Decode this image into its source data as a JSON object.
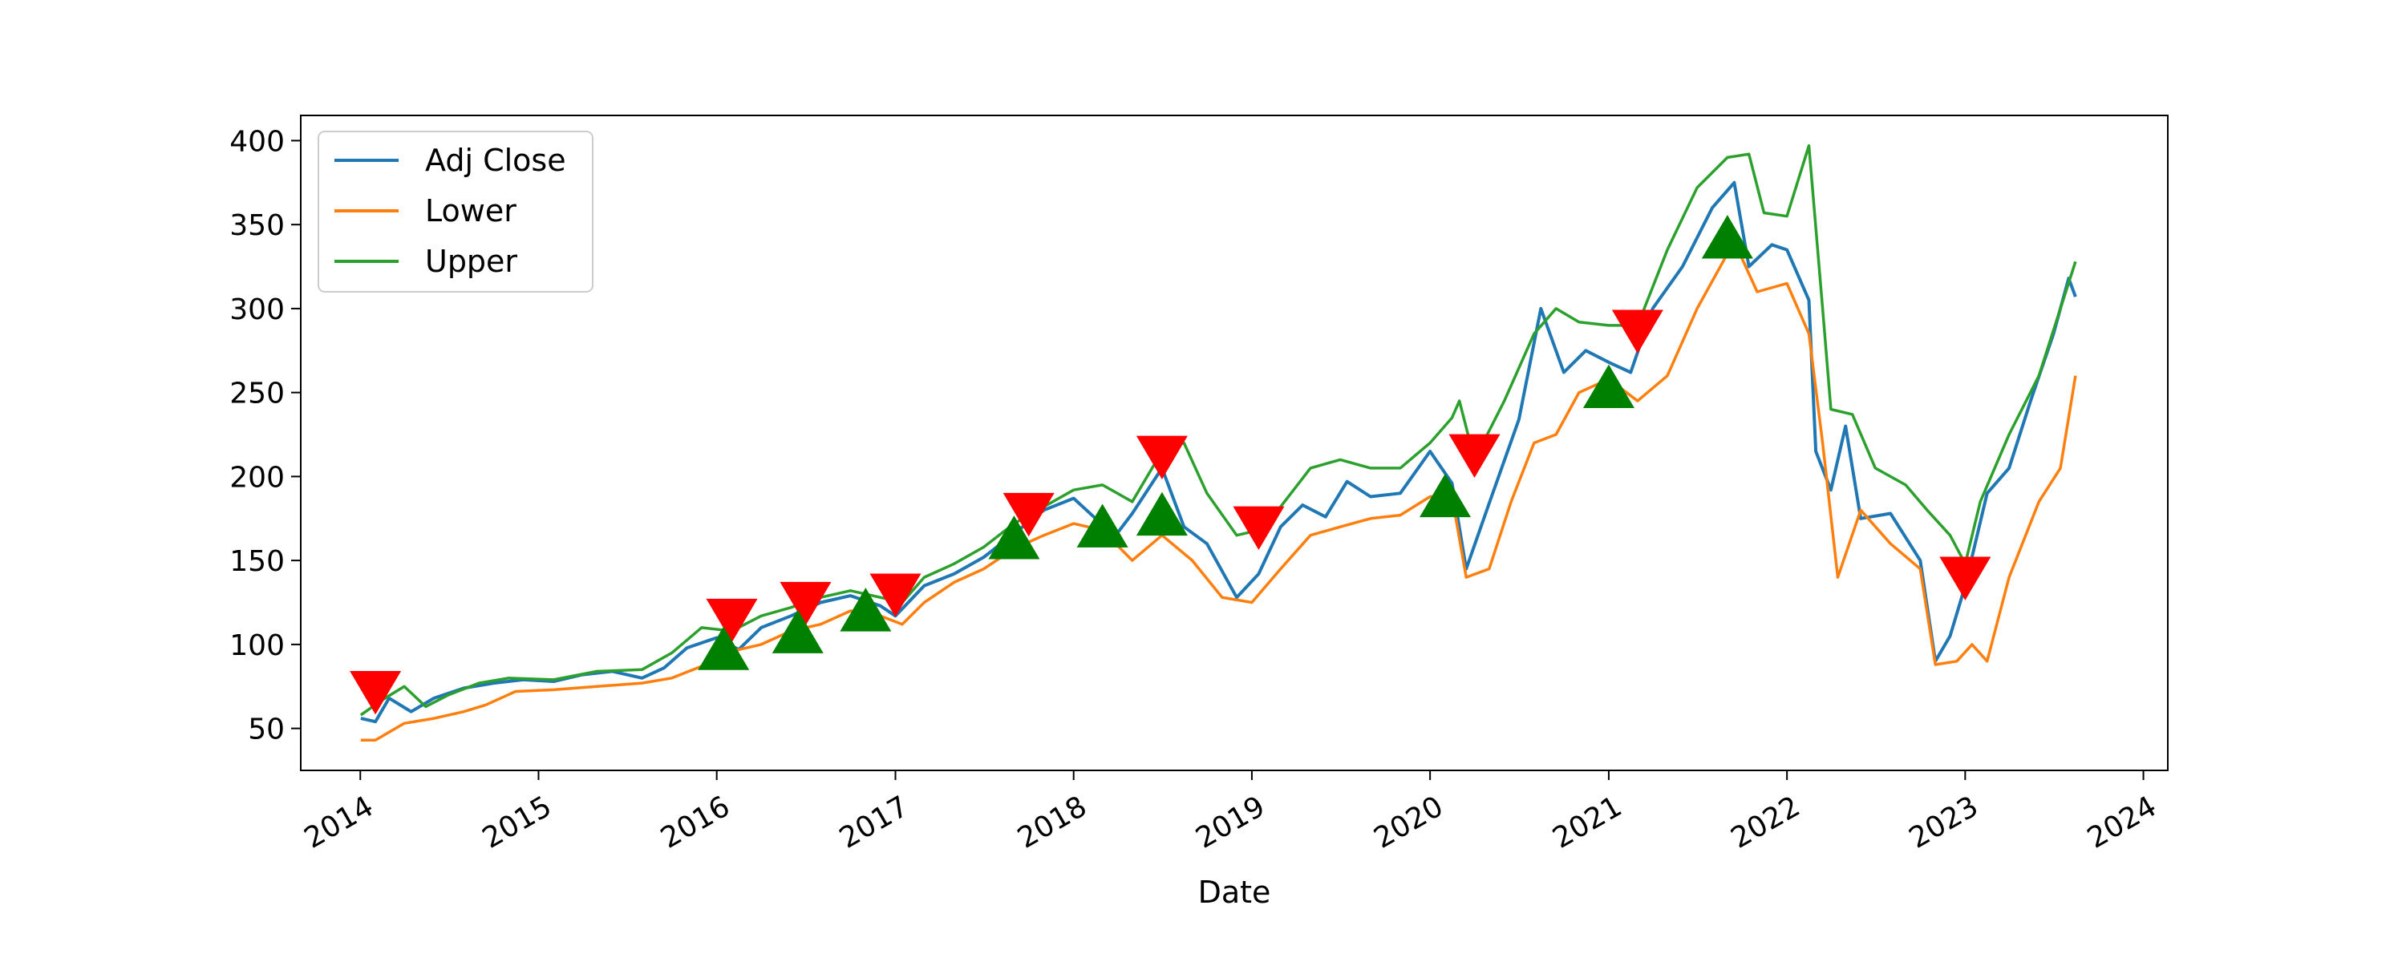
{
  "chart_data": {
    "type": "line",
    "title": "",
    "xlabel": "Date",
    "ylabel": "",
    "xlim": [
      "2013-09-01",
      "2024-02-20"
    ],
    "ylim": [
      25,
      415
    ],
    "x_ticks": [
      "2014",
      "2015",
      "2016",
      "2017",
      "2018",
      "2019",
      "2020",
      "2021",
      "2022",
      "2023",
      "2024"
    ],
    "y_ticks": [
      50,
      100,
      150,
      200,
      250,
      300,
      350,
      400
    ],
    "grid": false,
    "legend_position": "upper-left",
    "colors": {
      "Adj Close": "#1f77b4",
      "Lower": "#ff7f0e",
      "Upper": "#2ca02c",
      "sell_marker": "#ff0000",
      "buy_marker": "#008000"
    },
    "series": [
      {
        "name": "Adj Close",
        "points": [
          [
            "2014-01-02",
            56
          ],
          [
            "2014-02-01",
            54
          ],
          [
            "2014-03-01",
            68
          ],
          [
            "2014-04-15",
            60
          ],
          [
            "2014-06-01",
            68
          ],
          [
            "2014-08-01",
            74
          ],
          [
            "2014-10-01",
            77
          ],
          [
            "2014-12-01",
            79
          ],
          [
            "2015-02-01",
            78
          ],
          [
            "2015-04-01",
            82
          ],
          [
            "2015-06-01",
            84
          ],
          [
            "2015-08-01",
            80
          ],
          [
            "2015-09-15",
            86
          ],
          [
            "2015-11-01",
            98
          ],
          [
            "2016-01-01",
            104
          ],
          [
            "2016-02-15",
            97
          ],
          [
            "2016-04-01",
            110
          ],
          [
            "2016-06-01",
            117
          ],
          [
            "2016-08-01",
            125
          ],
          [
            "2016-10-01",
            129
          ],
          [
            "2016-12-01",
            123
          ],
          [
            "2017-01-01",
            117
          ],
          [
            "2017-03-01",
            135
          ],
          [
            "2017-05-01",
            142
          ],
          [
            "2017-07-01",
            152
          ],
          [
            "2017-09-01",
            166
          ],
          [
            "2017-11-01",
            180
          ],
          [
            "2018-01-01",
            187
          ],
          [
            "2018-02-15",
            175
          ],
          [
            "2018-03-15",
            160
          ],
          [
            "2018-05-01",
            178
          ],
          [
            "2018-07-01",
            205
          ],
          [
            "2018-08-15",
            170
          ],
          [
            "2018-10-01",
            160
          ],
          [
            "2018-12-01",
            128
          ],
          [
            "2019-01-15",
            142
          ],
          [
            "2019-03-01",
            170
          ],
          [
            "2019-04-15",
            183
          ],
          [
            "2019-06-01",
            176
          ],
          [
            "2019-07-15",
            197
          ],
          [
            "2019-09-01",
            188
          ],
          [
            "2019-11-01",
            190
          ],
          [
            "2020-01-01",
            215
          ],
          [
            "2020-02-15",
            196
          ],
          [
            "2020-03-15",
            145
          ],
          [
            "2020-05-01",
            184
          ],
          [
            "2020-07-01",
            234
          ],
          [
            "2020-08-15",
            300
          ],
          [
            "2020-10-01",
            262
          ],
          [
            "2020-11-15",
            275
          ],
          [
            "2021-01-01",
            268
          ],
          [
            "2021-02-15",
            262
          ],
          [
            "2021-04-01",
            300
          ],
          [
            "2021-06-01",
            325
          ],
          [
            "2021-08-01",
            360
          ],
          [
            "2021-09-15",
            375
          ],
          [
            "2021-10-15",
            325
          ],
          [
            "2021-12-01",
            338
          ],
          [
            "2022-01-01",
            335
          ],
          [
            "2022-02-15",
            305
          ],
          [
            "2022-03-01",
            215
          ],
          [
            "2022-04-01",
            192
          ],
          [
            "2022-05-01",
            230
          ],
          [
            "2022-06-01",
            175
          ],
          [
            "2022-08-01",
            178
          ],
          [
            "2022-10-01",
            150
          ],
          [
            "2022-11-01",
            90
          ],
          [
            "2022-12-01",
            105
          ],
          [
            "2023-01-01",
            135
          ],
          [
            "2023-02-15",
            190
          ],
          [
            "2023-04-01",
            205
          ],
          [
            "2023-05-15",
            245
          ],
          [
            "2023-07-01",
            285
          ],
          [
            "2023-08-01",
            318
          ],
          [
            "2023-08-15",
            307
          ]
        ]
      },
      {
        "name": "Lower",
        "points": [
          [
            "2014-01-02",
            43
          ],
          [
            "2014-02-01",
            43
          ],
          [
            "2014-04-01",
            53
          ],
          [
            "2014-06-01",
            56
          ],
          [
            "2014-08-01",
            60
          ],
          [
            "2014-09-15",
            64
          ],
          [
            "2014-11-15",
            72
          ],
          [
            "2015-02-01",
            73
          ],
          [
            "2015-05-01",
            75
          ],
          [
            "2015-08-01",
            77
          ],
          [
            "2015-10-01",
            80
          ],
          [
            "2015-12-01",
            87
          ],
          [
            "2016-02-01",
            96
          ],
          [
            "2016-04-01",
            100
          ],
          [
            "2016-06-01",
            108
          ],
          [
            "2016-08-01",
            112
          ],
          [
            "2016-10-01",
            120
          ],
          [
            "2016-12-01",
            117
          ],
          [
            "2017-01-15",
            112
          ],
          [
            "2017-03-01",
            125
          ],
          [
            "2017-05-01",
            137
          ],
          [
            "2017-07-01",
            145
          ],
          [
            "2017-09-01",
            157
          ],
          [
            "2017-11-01",
            165
          ],
          [
            "2018-01-01",
            172
          ],
          [
            "2018-03-01",
            168
          ],
          [
            "2018-05-01",
            150
          ],
          [
            "2018-07-01",
            165
          ],
          [
            "2018-09-01",
            150
          ],
          [
            "2018-11-01",
            128
          ],
          [
            "2019-01-01",
            125
          ],
          [
            "2019-03-01",
            145
          ],
          [
            "2019-05-01",
            165
          ],
          [
            "2019-07-01",
            170
          ],
          [
            "2019-09-01",
            175
          ],
          [
            "2019-11-01",
            177
          ],
          [
            "2020-01-01",
            188
          ],
          [
            "2020-02-15",
            188
          ],
          [
            "2020-03-15",
            140
          ],
          [
            "2020-05-01",
            145
          ],
          [
            "2020-06-15",
            185
          ],
          [
            "2020-08-01",
            220
          ],
          [
            "2020-09-15",
            225
          ],
          [
            "2020-11-01",
            250
          ],
          [
            "2021-01-01",
            258
          ],
          [
            "2021-03-01",
            245
          ],
          [
            "2021-05-01",
            260
          ],
          [
            "2021-07-01",
            300
          ],
          [
            "2021-09-15",
            340
          ],
          [
            "2021-11-01",
            310
          ],
          [
            "2022-01-01",
            315
          ],
          [
            "2022-02-15",
            285
          ],
          [
            "2022-03-15",
            220
          ],
          [
            "2022-04-15",
            140
          ],
          [
            "2022-06-01",
            180
          ],
          [
            "2022-08-01",
            160
          ],
          [
            "2022-10-01",
            145
          ],
          [
            "2022-11-01",
            88
          ],
          [
            "2022-12-15",
            90
          ],
          [
            "2023-01-15",
            100
          ],
          [
            "2023-02-15",
            90
          ],
          [
            "2023-04-01",
            140
          ],
          [
            "2023-06-01",
            185
          ],
          [
            "2023-07-15",
            205
          ],
          [
            "2023-08-15",
            260
          ]
        ]
      },
      {
        "name": "Upper",
        "points": [
          [
            "2014-01-02",
            58
          ],
          [
            "2014-02-15",
            67
          ],
          [
            "2014-04-01",
            75
          ],
          [
            "2014-05-15",
            63
          ],
          [
            "2014-07-01",
            70
          ],
          [
            "2014-09-01",
            77
          ],
          [
            "2014-11-01",
            80
          ],
          [
            "2015-02-01",
            79
          ],
          [
            "2015-05-01",
            84
          ],
          [
            "2015-08-01",
            85
          ],
          [
            "2015-10-01",
            95
          ],
          [
            "2015-12-01",
            110
          ],
          [
            "2016-02-01",
            108
          ],
          [
            "2016-04-01",
            117
          ],
          [
            "2016-06-01",
            122
          ],
          [
            "2016-08-01",
            128
          ],
          [
            "2016-10-01",
            132
          ],
          [
            "2016-12-01",
            128
          ],
          [
            "2017-01-15",
            125
          ],
          [
            "2017-03-01",
            140
          ],
          [
            "2017-05-01",
            148
          ],
          [
            "2017-07-01",
            158
          ],
          [
            "2017-09-01",
            172
          ],
          [
            "2017-11-01",
            182
          ],
          [
            "2018-01-01",
            192
          ],
          [
            "2018-03-01",
            195
          ],
          [
            "2018-05-01",
            185
          ],
          [
            "2018-07-01",
            215
          ],
          [
            "2018-08-15",
            220
          ],
          [
            "2018-10-01",
            190
          ],
          [
            "2018-12-01",
            165
          ],
          [
            "2019-01-15",
            168
          ],
          [
            "2019-03-01",
            182
          ],
          [
            "2019-05-01",
            205
          ],
          [
            "2019-07-01",
            210
          ],
          [
            "2019-09-01",
            205
          ],
          [
            "2019-11-01",
            205
          ],
          [
            "2020-01-01",
            220
          ],
          [
            "2020-02-15",
            235
          ],
          [
            "2020-03-01",
            245
          ],
          [
            "2020-04-01",
            210
          ],
          [
            "2020-06-01",
            245
          ],
          [
            "2020-08-01",
            285
          ],
          [
            "2020-09-15",
            300
          ],
          [
            "2020-11-01",
            292
          ],
          [
            "2021-01-01",
            290
          ],
          [
            "2021-03-01",
            290
          ],
          [
            "2021-05-01",
            335
          ],
          [
            "2021-07-01",
            372
          ],
          [
            "2021-09-01",
            390
          ],
          [
            "2021-10-15",
            392
          ],
          [
            "2021-11-15",
            357
          ],
          [
            "2022-01-01",
            355
          ],
          [
            "2022-02-15",
            397
          ],
          [
            "2022-03-15",
            300
          ],
          [
            "2022-04-01",
            240
          ],
          [
            "2022-05-15",
            237
          ],
          [
            "2022-07-01",
            205
          ],
          [
            "2022-09-01",
            195
          ],
          [
            "2022-10-15",
            180
          ],
          [
            "2022-12-01",
            165
          ],
          [
            "2023-01-01",
            148
          ],
          [
            "2023-02-01",
            185
          ],
          [
            "2023-04-01",
            225
          ],
          [
            "2023-06-01",
            260
          ],
          [
            "2023-07-15",
            300
          ],
          [
            "2023-08-15",
            328
          ]
        ]
      }
    ],
    "markers": [
      {
        "type": "sell",
        "x": "2014-02-01",
        "y": 72
      },
      {
        "type": "sell",
        "x": "2016-02-01",
        "y": 115
      },
      {
        "type": "sell",
        "x": "2016-07-01",
        "y": 125
      },
      {
        "type": "sell",
        "x": "2017-01-01",
        "y": 130
      },
      {
        "type": "sell",
        "x": "2017-10-01",
        "y": 178
      },
      {
        "type": "sell",
        "x": "2018-07-01",
        "y": 212
      },
      {
        "type": "sell",
        "x": "2019-01-15",
        "y": 170
      },
      {
        "type": "sell",
        "x": "2020-04-01",
        "y": 213
      },
      {
        "type": "sell",
        "x": "2021-03-01",
        "y": 287
      },
      {
        "type": "sell",
        "x": "2023-01-01",
        "y": 140
      },
      {
        "type": "buy",
        "x": "2016-01-15",
        "y": 97
      },
      {
        "type": "buy",
        "x": "2016-06-15",
        "y": 107
      },
      {
        "type": "buy",
        "x": "2016-11-01",
        "y": 120
      },
      {
        "type": "buy",
        "x": "2017-09-01",
        "y": 163
      },
      {
        "type": "buy",
        "x": "2018-03-01",
        "y": 170
      },
      {
        "type": "buy",
        "x": "2018-07-01",
        "y": 177
      },
      {
        "type": "buy",
        "x": "2020-02-01",
        "y": 188
      },
      {
        "type": "buy",
        "x": "2021-01-01",
        "y": 253
      },
      {
        "type": "buy",
        "x": "2021-09-01",
        "y": 342
      }
    ]
  }
}
